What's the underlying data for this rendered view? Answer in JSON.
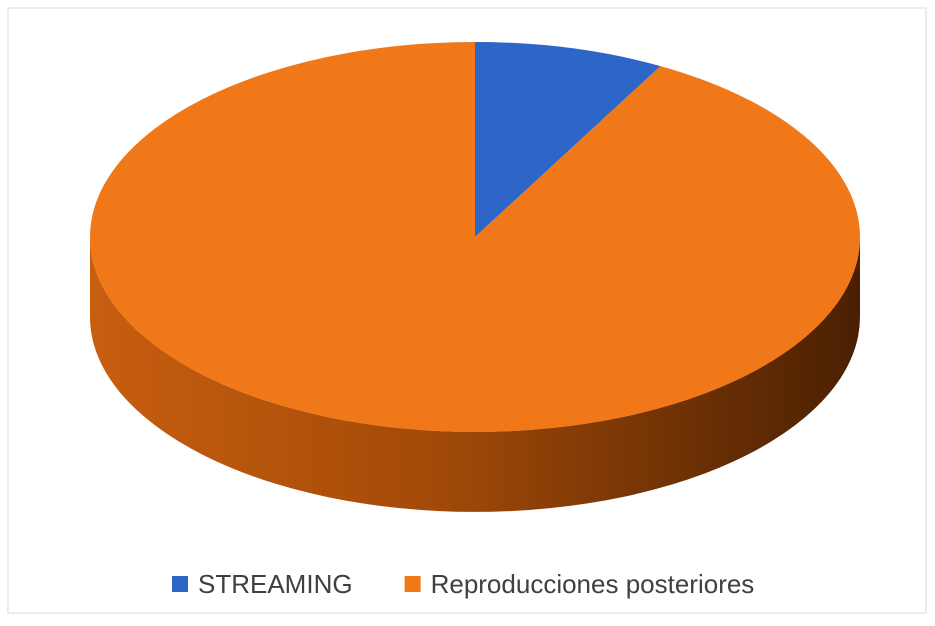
{
  "chart_data": {
    "type": "pie3d",
    "categories": [
      "STREAMING",
      "Reproducciones posteriores"
    ],
    "values": [
      8,
      92
    ],
    "colors": [
      "#2e66c8",
      "#f07818"
    ],
    "legend": "bottom"
  }
}
